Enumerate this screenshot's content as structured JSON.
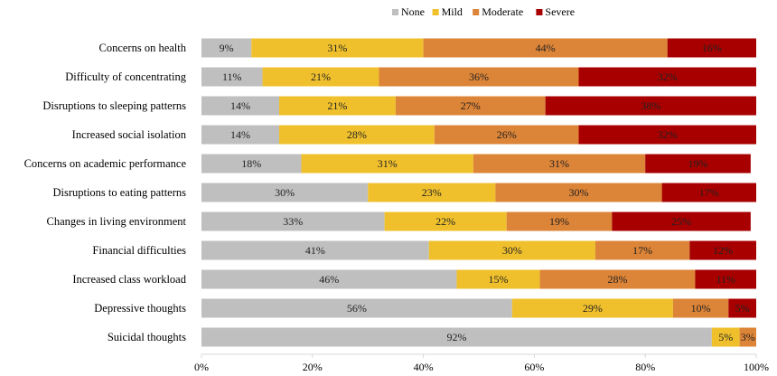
{
  "chart_data": {
    "type": "bar",
    "orientation": "horizontal",
    "stacked": true,
    "categories": [
      "Concerns on health",
      "Difficulty of concentrating",
      "Disruptions to sleeping patterns",
      "Increased social isolation",
      "Concerns on academic performance",
      "Disruptions to eating patterns",
      "Changes in living environment",
      "Financial difficulties",
      "Increased class workload",
      "Depressive thoughts",
      "Suicidal thoughts"
    ],
    "series": [
      {
        "name": "None",
        "color": "#bfbfbf",
        "values": [
          9,
          11,
          14,
          14,
          18,
          30,
          33,
          41,
          46,
          56,
          92
        ]
      },
      {
        "name": "Mild",
        "color": "#f0c02c",
        "values": [
          31,
          21,
          21,
          28,
          31,
          23,
          22,
          30,
          15,
          29,
          5
        ]
      },
      {
        "name": "Moderate",
        "color": "#dc8437",
        "values": [
          44,
          36,
          27,
          26,
          31,
          30,
          19,
          17,
          28,
          10,
          3
        ]
      },
      {
        "name": "Severe",
        "color": "#a80000",
        "values": [
          16,
          32,
          38,
          32,
          19,
          17,
          25,
          12,
          11,
          5,
          0
        ]
      }
    ],
    "xlim": [
      0,
      100
    ],
    "xticks": [
      "0%",
      "20%",
      "40%",
      "60%",
      "80%",
      "100%"
    ],
    "value_suffix": "%",
    "legend_position": "top-right",
    "grid": false
  }
}
